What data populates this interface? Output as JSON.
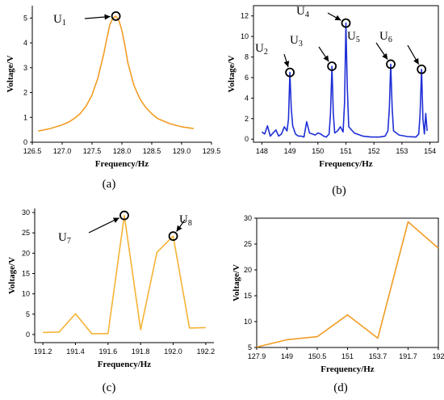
{
  "chart_data": [
    {
      "type": "line",
      "caption": "(a)",
      "xlabel": "Frequency/Hz",
      "ylabel": "Voltage/V",
      "color": "#f39c24",
      "xlim": [
        126.5,
        129.5
      ],
      "ylim": [
        0,
        5.5
      ],
      "xticks": [
        "126.5",
        "127.0",
        "127.5",
        "128.0",
        "128.5",
        "129.0",
        "129.5"
      ],
      "yticks": [
        "0",
        "1",
        "2",
        "3",
        "4",
        "5"
      ],
      "x": [
        126.6,
        126.8,
        127.0,
        127.1,
        127.2,
        127.3,
        127.4,
        127.5,
        127.6,
        127.7,
        127.75,
        127.8,
        127.85,
        127.9,
        127.95,
        128.0,
        128.05,
        128.1,
        128.2,
        128.3,
        128.4,
        128.5,
        128.6,
        128.8,
        129.0,
        129.2
      ],
      "y": [
        0.45,
        0.55,
        0.7,
        0.8,
        0.95,
        1.15,
        1.45,
        1.9,
        2.6,
        3.6,
        4.2,
        4.75,
        5.0,
        5.08,
        4.9,
        4.5,
        3.9,
        3.2,
        2.3,
        1.75,
        1.4,
        1.15,
        0.95,
        0.75,
        0.62,
        0.55
      ],
      "annotations": [
        {
          "base": "U",
          "sub": "1",
          "x": 127.9,
          "y": 5.08
        }
      ]
    },
    {
      "type": "line",
      "caption": "(b)",
      "xlabel": "Frequency/Hz",
      "ylabel": "Voltage/V",
      "color": "#1f2fd6",
      "xlim": [
        147.7,
        154.3
      ],
      "ylim": [
        -0.3,
        13
      ],
      "xticks": [
        "148",
        "149",
        "150",
        "151",
        "152",
        "153",
        "154"
      ],
      "xtick_values": [
        148,
        149,
        150,
        151,
        152,
        153,
        154
      ],
      "yticks": [
        "0",
        "2",
        "4",
        "6",
        "8",
        "10",
        "12"
      ],
      "x": [
        148.0,
        148.1,
        148.2,
        148.3,
        148.4,
        148.5,
        148.6,
        148.7,
        148.8,
        148.9,
        148.95,
        149.0,
        149.05,
        149.1,
        149.2,
        149.3,
        149.4,
        149.5,
        149.6,
        149.7,
        149.8,
        149.9,
        150.0,
        150.1,
        150.2,
        150.3,
        150.4,
        150.45,
        150.5,
        150.55,
        150.6,
        150.7,
        150.8,
        150.9,
        150.95,
        151.0,
        151.05,
        151.1,
        151.3,
        151.6,
        151.9,
        152.2,
        152.4,
        152.5,
        152.55,
        152.6,
        152.65,
        152.7,
        152.9,
        153.2,
        153.5,
        153.6,
        153.65,
        153.7,
        153.75,
        153.8,
        153.85,
        153.9
      ],
      "y": [
        0.7,
        0.5,
        1.3,
        0.3,
        0.6,
        0.9,
        0.3,
        0.5,
        1.2,
        0.8,
        2.0,
        6.5,
        3.0,
        1.3,
        0.5,
        0.3,
        0.3,
        0.2,
        1.7,
        0.6,
        0.5,
        0.4,
        0.6,
        0.5,
        0.3,
        0.2,
        0.5,
        2.5,
        7.1,
        2.5,
        0.6,
        0.8,
        1.2,
        0.7,
        3.5,
        11.3,
        5.0,
        1.2,
        0.6,
        0.3,
        0.2,
        0.2,
        0.3,
        0.8,
        3.0,
        7.3,
        3.0,
        0.8,
        0.4,
        0.25,
        0.2,
        0.5,
        2.5,
        6.8,
        2.0,
        0.5,
        2.5,
        0.8
      ],
      "annotations": [
        {
          "base": "U",
          "sub": "2",
          "x": 149.0,
          "y": 6.5
        },
        {
          "base": "U",
          "sub": "3",
          "x": 150.5,
          "y": 7.1
        },
        {
          "base": "U",
          "sub": "4",
          "x": 151.0,
          "y": 11.3
        },
        {
          "base": "U",
          "sub": "5",
          "x": 152.6,
          "y": 7.3
        },
        {
          "base": "U",
          "sub": "6",
          "x": 153.7,
          "y": 6.8
        }
      ]
    },
    {
      "type": "line",
      "caption": "(c)",
      "xlabel": "Frequency/Hz",
      "ylabel": "Voltage/V",
      "color": "#f5b335",
      "xlim": [
        191.15,
        192.25
      ],
      "ylim": [
        -2,
        31
      ],
      "xticks": [
        "191.2",
        "191.4",
        "191.6",
        "191.8",
        "192.0",
        "192.2"
      ],
      "xtick_values": [
        191.2,
        191.4,
        191.6,
        191.8,
        192.0,
        192.2
      ],
      "yticks": [
        "0",
        "5",
        "10",
        "15",
        "20",
        "25",
        "30"
      ],
      "x": [
        191.2,
        191.3,
        191.4,
        191.5,
        191.6,
        191.7,
        191.8,
        191.9,
        192.0,
        192.1,
        192.2
      ],
      "y": [
        0.5,
        0.6,
        5.1,
        0.2,
        0.2,
        29.3,
        1.2,
        20.2,
        24.2,
        1.6,
        1.7
      ],
      "annotations": [
        {
          "base": "U",
          "sub": "7",
          "x": 191.7,
          "y": 29.3
        },
        {
          "base": "U",
          "sub": "8",
          "x": 192.0,
          "y": 24.2
        }
      ]
    },
    {
      "type": "line",
      "caption": "(d)",
      "xlabel": "Frequency/Hz",
      "ylabel": "Voltage/V",
      "color": "#f39c24",
      "categories": [
        "127.9",
        "149",
        "150.5",
        "151",
        "153.7",
        "191.7",
        "192"
      ],
      "ylim": [
        5,
        30
      ],
      "yticks": [
        "5",
        "10",
        "15",
        "20",
        "25",
        "30"
      ],
      "values": [
        5.08,
        6.5,
        7.1,
        11.3,
        6.8,
        29.3,
        24.2
      ]
    }
  ]
}
